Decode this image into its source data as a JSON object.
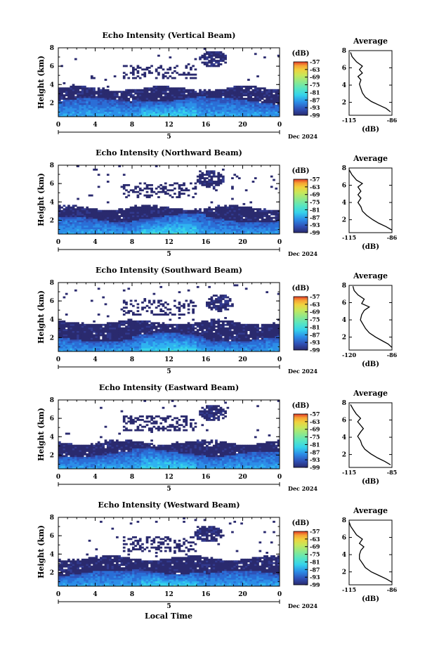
{
  "chart_data": [
    {
      "type": "heatmap",
      "title": "Echo Intensity (Vertical Beam)",
      "ylabel": "Height (km)",
      "x_ticks": [
        "0",
        "4",
        "8",
        "12",
        "16",
        "20",
        "0"
      ],
      "date_number": "5",
      "date_label": "Dec 2024",
      "y_ticks": [
        "2",
        "4",
        "6",
        "8"
      ],
      "xlim": [
        0,
        24
      ],
      "ylim": [
        0.5,
        8
      ],
      "colorbar": {
        "title": "(dB)",
        "ticks": [
          "-57",
          "-63",
          "-69",
          "-75",
          "-81",
          "-87",
          "-93",
          "-99"
        ]
      },
      "layers": {
        "base_top": 3.6,
        "dense_top": 2.2,
        "upper_band": [
          4.6,
          6.2
        ],
        "cloud_center": [
          16.8,
          6.8
        ]
      },
      "average": {
        "title": "Average",
        "xlabel": "(dB)",
        "xlim": [
          -115,
          -86
        ],
        "x_ticks": [
          "-115",
          "-86"
        ],
        "y_ticks": [
          "2",
          "4",
          "6",
          "8"
        ],
        "profile": [
          [
            -87,
            0.9
          ],
          [
            -90,
            1.3
          ],
          [
            -95,
            1.7
          ],
          [
            -100,
            2.1
          ],
          [
            -104,
            2.6
          ],
          [
            -106,
            3.1
          ],
          [
            -107,
            3.6
          ],
          [
            -108,
            4.1
          ],
          [
            -107,
            4.6
          ],
          [
            -109,
            5.0
          ],
          [
            -106,
            5.4
          ],
          [
            -108,
            5.8
          ],
          [
            -106,
            6.2
          ],
          [
            -110,
            6.7
          ],
          [
            -113,
            7.3
          ],
          [
            -114,
            7.8
          ]
        ]
      }
    },
    {
      "type": "heatmap",
      "title": "Echo Intensity (Northward Beam)",
      "ylabel": "Height (km)",
      "x_ticks": [
        "0",
        "4",
        "8",
        "12",
        "16",
        "20",
        "0"
      ],
      "date_number": "5",
      "date_label": "Dec 2024",
      "y_ticks": [
        "2",
        "4",
        "6",
        "8"
      ],
      "xlim": [
        0,
        24
      ],
      "ylim": [
        0.5,
        8
      ],
      "colorbar": {
        "title": "(dB)",
        "ticks": [
          "-57",
          "-63",
          "-69",
          "-75",
          "-81",
          "-87",
          "-93",
          "-99"
        ]
      },
      "layers": {
        "base_top": 3.4,
        "dense_top": 2.1,
        "upper_band": [
          4.5,
          6.1
        ],
        "cloud_center": [
          16.5,
          6.5
        ]
      },
      "average": {
        "title": "Average",
        "xlabel": "(dB)",
        "xlim": [
          -115,
          -86
        ],
        "x_ticks": [
          "-115",
          "-86"
        ],
        "y_ticks": [
          "2",
          "4",
          "6",
          "8"
        ],
        "profile": [
          [
            -86,
            0.8
          ],
          [
            -90,
            1.2
          ],
          [
            -95,
            1.6
          ],
          [
            -99,
            2.0
          ],
          [
            -103,
            2.5
          ],
          [
            -106,
            3.0
          ],
          [
            -107,
            3.5
          ],
          [
            -109,
            4.0
          ],
          [
            -107,
            4.5
          ],
          [
            -109,
            4.9
          ],
          [
            -107,
            5.3
          ],
          [
            -109,
            5.8
          ],
          [
            -106,
            6.2
          ],
          [
            -110,
            6.6
          ],
          [
            -113,
            7.2
          ],
          [
            -115,
            7.8
          ]
        ]
      }
    },
    {
      "type": "heatmap",
      "title": "Echo Intensity (Southward Beam)",
      "ylabel": "Height (km)",
      "x_ticks": [
        "0",
        "4",
        "8",
        "12",
        "16",
        "20",
        "0"
      ],
      "date_number": "5",
      "date_label": "Dec 2024",
      "y_ticks": [
        "2",
        "4",
        "6",
        "8"
      ],
      "xlim": [
        0,
        24
      ],
      "ylim": [
        0.5,
        8
      ],
      "colorbar": {
        "title": "(dB)",
        "ticks": [
          "-57",
          "-63",
          "-69",
          "-75",
          "-81",
          "-87",
          "-93",
          "-99"
        ]
      },
      "layers": {
        "base_top": 3.7,
        "dense_top": 1.9,
        "upper_band": [
          4.4,
          6.2
        ],
        "cloud_center": [
          17.5,
          5.8
        ]
      },
      "average": {
        "title": "Average",
        "xlabel": "(dB)",
        "xlim": [
          -120,
          -86
        ],
        "x_ticks": [
          "-120",
          "-86"
        ],
        "y_ticks": [
          "2",
          "4",
          "6",
          "8"
        ],
        "profile": [
          [
            -86,
            0.8
          ],
          [
            -89,
            1.2
          ],
          [
            -94,
            1.6
          ],
          [
            -99,
            2.0
          ],
          [
            -104,
            2.5
          ],
          [
            -107,
            3.0
          ],
          [
            -109,
            3.5
          ],
          [
            -111,
            4.0
          ],
          [
            -110,
            4.6
          ],
          [
            -108,
            5.1
          ],
          [
            -104,
            5.5
          ],
          [
            -110,
            5.9
          ],
          [
            -108,
            6.4
          ],
          [
            -113,
            6.9
          ],
          [
            -116,
            7.4
          ],
          [
            -117,
            7.9
          ]
        ]
      }
    },
    {
      "type": "heatmap",
      "title": "Echo Intensity (Eastward Beam)",
      "ylabel": "Height (km)",
      "x_ticks": [
        "0",
        "4",
        "8",
        "12",
        "16",
        "20",
        "0"
      ],
      "date_number": "5",
      "date_label": "Dec 2024",
      "y_ticks": [
        "2",
        "4",
        "6",
        "8"
      ],
      "xlim": [
        0,
        24
      ],
      "ylim": [
        0.5,
        8
      ],
      "colorbar": {
        "title": "(dB)",
        "ticks": [
          "-57",
          "-63",
          "-69",
          "-75",
          "-81",
          "-87",
          "-93",
          "-99"
        ]
      },
      "layers": {
        "base_top": 3.4,
        "dense_top": 2.1,
        "upper_band": [
          4.6,
          6.3
        ],
        "cloud_center": [
          16.8,
          6.6
        ]
      },
      "average": {
        "title": "Average",
        "xlabel": "(dB)",
        "xlim": [
          -115,
          -85
        ],
        "x_ticks": [
          "-115",
          "-85"
        ],
        "y_ticks": [
          "2",
          "4",
          "6",
          "8"
        ],
        "profile": [
          [
            -86,
            0.8
          ],
          [
            -90,
            1.2
          ],
          [
            -95,
            1.6
          ],
          [
            -100,
            2.1
          ],
          [
            -104,
            2.6
          ],
          [
            -106,
            3.1
          ],
          [
            -107,
            3.6
          ],
          [
            -109,
            4.1
          ],
          [
            -107,
            4.6
          ],
          [
            -105,
            5.0
          ],
          [
            -107,
            5.4
          ],
          [
            -109,
            5.8
          ],
          [
            -107,
            6.2
          ],
          [
            -110,
            6.7
          ],
          [
            -112,
            7.2
          ],
          [
            -114,
            7.8
          ]
        ]
      }
    },
    {
      "type": "heatmap",
      "title": "Echo Intensity (Westward Beam)",
      "ylabel": "Height (km)",
      "x_ticks": [
        "0",
        "4",
        "8",
        "12",
        "16",
        "20",
        "0"
      ],
      "date_number": "5",
      "date_label": "Dec 2024",
      "y_ticks": [
        "2",
        "4",
        "6",
        "8"
      ],
      "xlim": [
        0,
        24
      ],
      "ylim": [
        0.5,
        8
      ],
      "colorbar": {
        "title": "(dB)",
        "ticks": [
          "-57",
          "-63",
          "-69",
          "-75",
          "-81",
          "-87",
          "-93",
          "-99"
        ]
      },
      "layers": {
        "base_top": 3.6,
        "dense_top": 1.9,
        "upper_band": [
          4.3,
          6.0
        ],
        "cloud_center": [
          16.3,
          6.2
        ]
      },
      "average": {
        "title": "Average",
        "xlabel": "(dB)",
        "xlim": [
          -115,
          -86
        ],
        "x_ticks": [
          "-115",
          "-86"
        ],
        "y_ticks": [
          "2",
          "4",
          "6",
          "8"
        ],
        "profile": [
          [
            -86,
            0.8
          ],
          [
            -90,
            1.2
          ],
          [
            -95,
            1.6
          ],
          [
            -100,
            2.0
          ],
          [
            -104,
            2.5
          ],
          [
            -106,
            3.0
          ],
          [
            -108,
            3.5
          ],
          [
            -108,
            4.0
          ],
          [
            -107,
            4.5
          ],
          [
            -105,
            4.9
          ],
          [
            -108,
            5.3
          ],
          [
            -106,
            5.8
          ],
          [
            -110,
            6.3
          ],
          [
            -112,
            6.8
          ],
          [
            -114,
            7.3
          ],
          [
            -115,
            7.8
          ]
        ]
      }
    }
  ],
  "x_axis_label": "Local Time",
  "colors": {
    "colormap": [
      "#2a2a6e",
      "#323a8e",
      "#2f52b8",
      "#2b6ed6",
      "#2c8ee8",
      "#2fb3f0",
      "#36d3ea",
      "#57e5c2",
      "#8be88e",
      "#c8e75a",
      "#f0d23e",
      "#f6a234",
      "#f06a2c",
      "#e23a28"
    ],
    "text": "#000000"
  }
}
